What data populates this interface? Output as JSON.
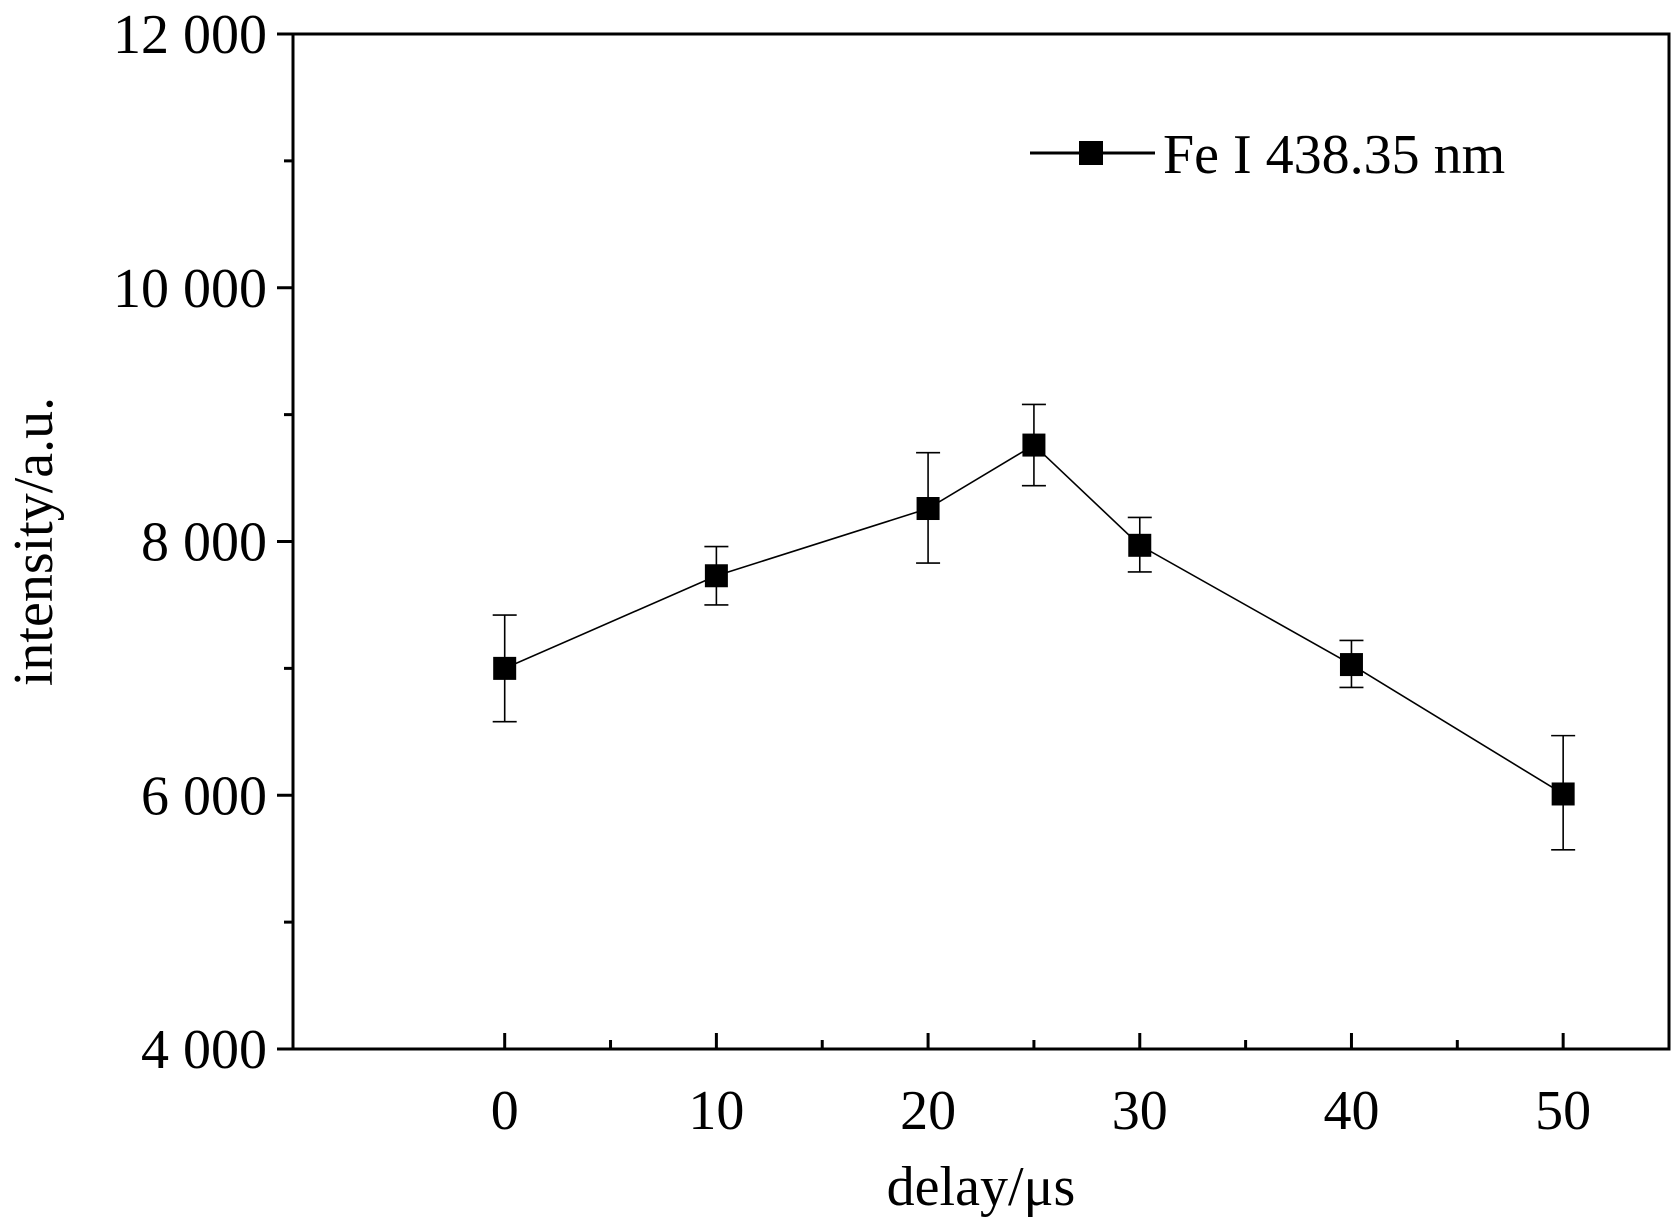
{
  "chart_data": {
    "type": "line",
    "title": "",
    "xlabel": "delay/μs",
    "ylabel": "intensity/a.u.",
    "xlim": [
      -10,
      55
    ],
    "ylim": [
      4000,
      12000
    ],
    "x_ticks": [
      0,
      10,
      20,
      30,
      40,
      50
    ],
    "x_tick_labels": [
      "0",
      "10",
      "20",
      "30",
      "40",
      "50"
    ],
    "x_minor_ticks": [
      5,
      15,
      25,
      35,
      45
    ],
    "y_ticks": [
      4000,
      6000,
      8000,
      10000,
      12000
    ],
    "y_tick_labels": [
      "4 000",
      "6 000",
      "8 000",
      "10 000",
      "12 000"
    ],
    "y_minor_ticks": [
      5000,
      7000,
      9000,
      11000
    ],
    "grid": false,
    "legend_position": "top-right",
    "series": [
      {
        "name": "Fe I 438.35 nm",
        "marker": "square",
        "color": "#000000",
        "x": [
          0,
          10,
          20,
          25,
          30,
          40,
          50
        ],
        "y": [
          7000,
          7730,
          8260,
          8760,
          7970,
          7030,
          6010
        ],
        "y_err_upper": [
          7420,
          7960,
          8700,
          9080,
          8190,
          7220,
          6470
        ],
        "y_err_lower": [
          6580,
          7500,
          7830,
          8440,
          7760,
          6850,
          5570
        ]
      }
    ]
  }
}
